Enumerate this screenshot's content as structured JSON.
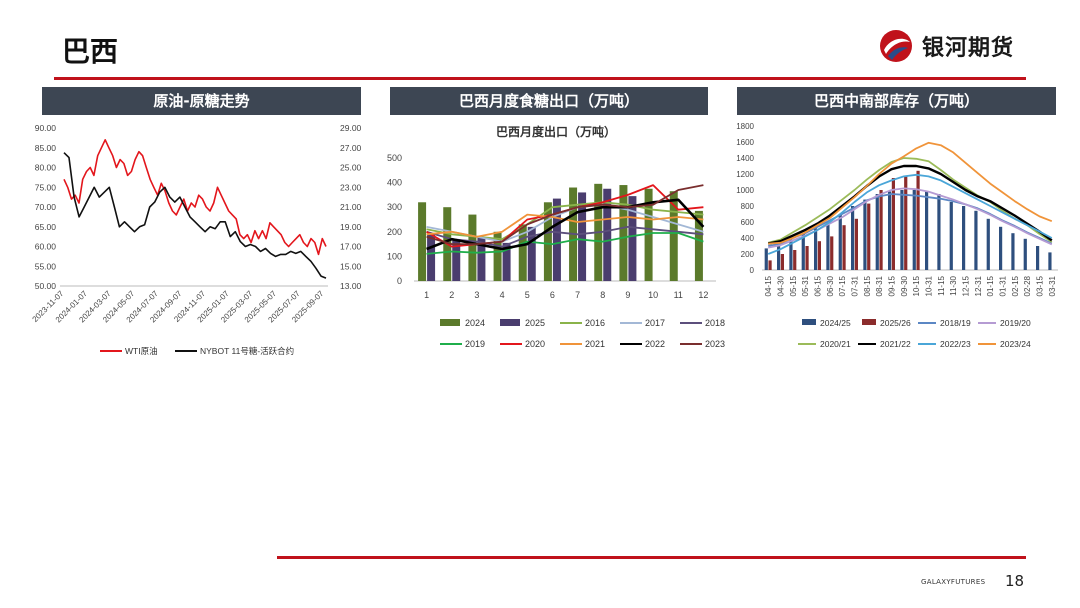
{
  "page": {
    "title": "巴西",
    "number": "18"
  },
  "brand": {
    "name": "银河期货",
    "footer": "GALAXYFUTURES"
  },
  "colors": {
    "accent": "#c0121b",
    "header_bg": "#3d4653"
  },
  "chart_data": [
    {
      "type": "line",
      "header": "原油-原糖走势",
      "x_ticks": [
        "2023-11-07",
        "2024-01-07",
        "2024-03-07",
        "2024-05-07",
        "2024-07-07",
        "2024-09-07",
        "2024-11-07",
        "2025-01-07",
        "2025-03-07",
        "2025-05-07",
        "2025-07-07",
        "2025-09-07"
      ],
      "y_left_ticks": [
        "90.00",
        "85.00",
        "80.00",
        "75.00",
        "70.00",
        "65.00",
        "60.00",
        "55.00",
        "50.00"
      ],
      "y_right_ticks": [
        "29.00",
        "27.00",
        "25.00",
        "23.00",
        "21.00",
        "19.00",
        "17.00",
        "15.00",
        "13.00"
      ],
      "ylim_left": [
        50,
        90
      ],
      "ylim_right": [
        13,
        29
      ],
      "series": [
        {
          "name": "WTI原油",
          "axis": "left",
          "color": "#e3161c",
          "values": [
            77,
            75,
            72,
            73,
            71,
            77,
            79,
            80,
            78,
            83,
            85,
            87,
            85,
            83,
            80,
            82,
            81,
            78,
            79,
            82,
            84,
            83,
            80,
            77,
            75,
            73,
            76,
            74,
            71,
            69,
            68,
            70,
            72,
            69,
            71,
            70,
            73,
            72,
            70,
            69,
            71,
            75,
            73,
            71,
            69,
            68,
            67,
            63,
            62,
            63,
            61,
            64,
            62,
            64,
            62,
            66,
            65,
            64,
            63,
            61,
            60,
            61,
            62,
            63,
            61,
            60,
            62,
            61,
            58,
            62,
            60
          ]
        },
        {
          "name": "NYBOT 11号糖-活跃合约",
          "axis": "right",
          "color": "#111111",
          "values": [
            26.5,
            26,
            22,
            20,
            21,
            22,
            23,
            22,
            22.5,
            23,
            21,
            19,
            19.5,
            19,
            18.5,
            19,
            19.2,
            21,
            21.5,
            22.5,
            23,
            22,
            21.5,
            22,
            21,
            20,
            19.5,
            19,
            18.5,
            19,
            18.8,
            19.5,
            19.5,
            18,
            18.5,
            17.5,
            17,
            17.2,
            17,
            16.5,
            16.8,
            16.3,
            16,
            16.2,
            16.2,
            16.5,
            16.3,
            16.5,
            16,
            15.5,
            14.8,
            14,
            13.8
          ]
        }
      ]
    },
    {
      "type": "bar",
      "header": "巴西月度食糖出口（万吨）",
      "title": "巴西月度出口（万吨）",
      "categories": [
        "1",
        "2",
        "3",
        "4",
        "5",
        "6",
        "7",
        "8",
        "9",
        "10",
        "11",
        "12"
      ],
      "y_ticks": [
        "0",
        "100",
        "200",
        "300",
        "400",
        "500"
      ],
      "ylim": [
        0,
        500
      ],
      "bar_series": [
        {
          "name": "2024",
          "color": "#5b7a2b",
          "values": [
            320,
            300,
            270,
            200,
            230,
            320,
            380,
            395,
            390,
            375,
            365,
            285
          ]
        },
        {
          "name": "2025",
          "color": "#4a3d6e",
          "values": [
            190,
            170,
            180,
            155,
            220,
            335,
            360,
            375,
            345,
            null,
            null,
            null
          ]
        }
      ],
      "line_series": [
        {
          "name": "2016",
          "color": "#8ab34a",
          "values": [
            210,
            190,
            180,
            170,
            230,
            300,
            310,
            320,
            310,
            290,
            280,
            270
          ]
        },
        {
          "name": "2017",
          "color": "#a3b8d6",
          "values": [
            220,
            200,
            180,
            160,
            200,
            260,
            300,
            310,
            290,
            260,
            230,
            200
          ]
        },
        {
          "name": "2018",
          "color": "#5c4f7c",
          "values": [
            200,
            170,
            160,
            140,
            180,
            200,
            190,
            200,
            220,
            210,
            200,
            190
          ]
        },
        {
          "name": "2019",
          "color": "#1fae4b",
          "values": [
            110,
            120,
            115,
            120,
            160,
            150,
            170,
            160,
            180,
            195,
            195,
            160
          ]
        },
        {
          "name": "2020",
          "color": "#e3161c",
          "values": [
            200,
            140,
            150,
            160,
            250,
            270,
            300,
            320,
            350,
            390,
            290,
            300
          ]
        },
        {
          "name": "2021",
          "color": "#f0943a",
          "values": [
            190,
            200,
            180,
            200,
            270,
            260,
            240,
            250,
            260,
            250,
            260,
            250
          ]
        },
        {
          "name": "2022",
          "color": "#000000",
          "values": [
            130,
            170,
            150,
            130,
            150,
            220,
            280,
            300,
            300,
            320,
            330,
            220
          ]
        },
        {
          "name": "2023",
          "color": "#7a2e2e",
          "values": [
            180,
            150,
            150,
            160,
            230,
            270,
            300,
            310,
            300,
            310,
            370,
            390
          ]
        }
      ]
    },
    {
      "type": "bar",
      "header": "巴西中南部库存（万吨）",
      "categories": [
        "04-15",
        "04-30",
        "05-15",
        "05-31",
        "06-15",
        "06-30",
        "07-15",
        "07-31",
        "08-15",
        "08-31",
        "09-15",
        "09-30",
        "10-15",
        "10-31",
        "11-15",
        "11-30",
        "12-15",
        "12-31",
        "01-15",
        "01-31",
        "02-15",
        "02-28",
        "03-15",
        "03-31"
      ],
      "y_ticks": [
        "0",
        "200",
        "400",
        "600",
        "800",
        "1000",
        "1200",
        "1400",
        "1600",
        "1800"
      ],
      "ylim": [
        0,
        1800
      ],
      "bar_series": [
        {
          "name": "2024/25",
          "color": "#2e4f7e",
          "values": [
            270,
            300,
            380,
            450,
            520,
            600,
            700,
            800,
            880,
            950,
            980,
            1000,
            1000,
            980,
            950,
            850,
            800,
            740,
            640,
            540,
            460,
            390,
            300,
            220
          ]
        },
        {
          "name": "2025/26",
          "color": "#8b2c2c",
          "values": [
            120,
            200,
            250,
            300,
            360,
            420,
            560,
            640,
            830,
            1000,
            1150,
            1180,
            1240,
            null,
            null,
            null,
            null,
            null,
            null,
            null,
            null,
            null,
            null,
            null
          ]
        }
      ],
      "line_series": [
        {
          "name": "2018/19",
          "color": "#5b87c4",
          "values": [
            300,
            330,
            400,
            460,
            540,
            620,
            700,
            780,
            870,
            920,
            950,
            940,
            930,
            910,
            890,
            860,
            820,
            770,
            700,
            620,
            550,
            470,
            400,
            330
          ]
        },
        {
          "name": "2019/20",
          "color": "#b59bd3",
          "values": [
            280,
            310,
            370,
            430,
            500,
            580,
            660,
            760,
            860,
            940,
            1000,
            1020,
            1010,
            980,
            930,
            880,
            820,
            760,
            690,
            610,
            540,
            460,
            390,
            320
          ]
        },
        {
          "name": "2020/21",
          "color": "#9bbb59",
          "values": [
            340,
            380,
            470,
            560,
            660,
            760,
            880,
            1000,
            1130,
            1250,
            1350,
            1400,
            1390,
            1360,
            1250,
            1130,
            1030,
            930,
            850,
            740,
            640,
            560,
            450,
            350
          ]
        },
        {
          "name": "2021/22",
          "color": "#000000",
          "values": [
            330,
            360,
            430,
            500,
            580,
            680,
            800,
            920,
            1050,
            1170,
            1260,
            1300,
            1300,
            1270,
            1200,
            1100,
            1000,
            920,
            860,
            770,
            680,
            580,
            480,
            370
          ]
        },
        {
          "name": "2022/23",
          "color": "#4aa6d8",
          "values": [
            200,
            260,
            340,
            420,
            500,
            600,
            720,
            850,
            970,
            1060,
            1120,
            1170,
            1190,
            1170,
            1120,
            1040,
            960,
            880,
            800,
            720,
            640,
            560,
            480,
            400
          ]
        },
        {
          "name": "2023/24",
          "color": "#f0943a",
          "values": [
            330,
            340,
            400,
            470,
            560,
            650,
            780,
            910,
            1050,
            1200,
            1330,
            1420,
            1520,
            1590,
            1560,
            1470,
            1340,
            1210,
            1080,
            970,
            860,
            760,
            670,
            610
          ]
        }
      ]
    }
  ]
}
